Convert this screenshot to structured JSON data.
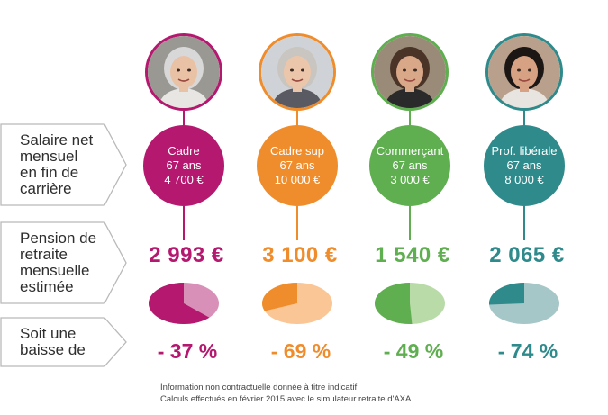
{
  "rows": [
    {
      "label": "Salaire net\nmensuel\nen fin de\ncarrière"
    },
    {
      "label": "Pension de\nretraite\nmensuelle\nestimée"
    },
    {
      "label": "Soit une\nbaisse de"
    }
  ],
  "profiles": [
    {
      "title": "Cadre",
      "age": "67 ans",
      "salary": "4 700 €",
      "pension": "2 993 €",
      "drop": "- 37 %",
      "pension_ratio": 0.63,
      "color": "#b4186f",
      "light": "#d890b8",
      "hair": "#d8d8d8",
      "skin": "#e9c2a6",
      "shirt": "#e8e6e2",
      "bg": "#9a9892",
      "icon": "woman-gray-hair-glasses-photo"
    },
    {
      "title": "Cadre sup",
      "age": "67 ans",
      "salary": "10 000 €",
      "pension": "3 100 €",
      "drop": "- 69 %",
      "pension_ratio": 0.31,
      "color": "#ef8d2d",
      "light": "#fbc696",
      "hair": "#c9c5c0",
      "skin": "#ecc6aa",
      "shirt": "#5a5a62",
      "bg": "#cfd3d7",
      "icon": "woman-blonde-hair-photo"
    },
    {
      "title": "Commerçant",
      "age": "67 ans",
      "salary": "3 000 €",
      "pension": "1 540 €",
      "drop": "- 49 %",
      "pension_ratio": 0.51,
      "color": "#5fae4f",
      "light": "#b9dba8",
      "hair": "#4a3428",
      "skin": "#d9a889",
      "shirt": "#2a2a2a",
      "bg": "#9a8b78",
      "icon": "woman-brown-hair-photo"
    },
    {
      "title": "Prof. libérale",
      "age": "67 ans",
      "salary": "8 000 €",
      "pension": "2 065 €",
      "drop": "- 74 %",
      "pension_ratio": 0.26,
      "color": "#2f8a8b",
      "light": "#a5c7c8",
      "hair": "#1c1715",
      "skin": "#d6a283",
      "shirt": "#e8e4df",
      "bg": "#b9a08c",
      "icon": "woman-short-dark-hair-photo"
    }
  ],
  "footnote": {
    "line1": "Information non contractuelle donnée à titre indicatif.",
    "line2": "Calculs effectués en février 2015 avec le simulateur retraite d'AXA."
  }
}
